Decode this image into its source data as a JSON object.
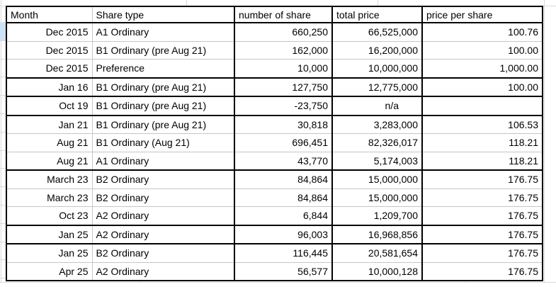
{
  "spreadsheet": {
    "columns": [
      {
        "id": "month",
        "label": "Month",
        "align": "right"
      },
      {
        "id": "share_type",
        "label": "Share type",
        "align": "left"
      },
      {
        "id": "number_of_share",
        "label": "number of share",
        "align": "right"
      },
      {
        "id": "total_price",
        "label": "total price",
        "align": "right"
      },
      {
        "id": "price_per_share",
        "label": "price per share",
        "align": "right"
      }
    ],
    "rows": [
      {
        "cells": [
          "Dec 2015",
          "A1 Ordinary",
          "660,250",
          "66,525,000",
          "100.76"
        ],
        "group_end": false
      },
      {
        "cells": [
          "Dec 2015",
          "B1 Ordinary (pre Aug 21)",
          "162,000",
          "16,200,000",
          "100.00"
        ],
        "group_end": false
      },
      {
        "cells": [
          "Dec 2015",
          "Preference",
          "10,000",
          "10,000,000",
          "1,000.00"
        ],
        "group_end": true
      },
      {
        "cells": [
          "Jan 16",
          "B1 Ordinary (pre Aug 21)",
          "127,750",
          "12,775,000",
          "100.00"
        ],
        "group_end": true
      },
      {
        "cells": [
          "Oct 19",
          "B1 Ordinary (pre Aug 21)",
          "-23,750",
          "n/a",
          ""
        ],
        "group_end": true
      },
      {
        "cells": [
          "Jan 21",
          "B1 Ordinary (pre Aug 21)",
          "30,818",
          "3,283,000",
          "106.53"
        ],
        "group_end": false
      },
      {
        "cells": [
          "Aug 21",
          "B1 Ordinary (Aug 21)",
          "696,451",
          "82,326,017",
          "118.21"
        ],
        "group_end": false
      },
      {
        "cells": [
          "Aug 21",
          "A1 Ordinary",
          "43,770",
          "5,174,003",
          "118.21"
        ],
        "group_end": true
      },
      {
        "cells": [
          "March 23",
          "B2 Ordinary",
          "84,864",
          "15,000,000",
          "176.75"
        ],
        "group_end": false
      },
      {
        "cells": [
          "March 23",
          "B2 Ordinary",
          "84,864",
          "15,000,000",
          "176.75"
        ],
        "group_end": false
      },
      {
        "cells": [
          "Oct 23",
          "A2 Ordinary",
          "6,844",
          "1,209,700",
          "176.75"
        ],
        "group_end": true
      },
      {
        "cells": [
          "Jan 25",
          "A2 Ordinary",
          "96,003",
          "16,968,856",
          "176.75"
        ],
        "group_end": true
      },
      {
        "cells": [
          "Jan 25",
          "B2 Ordinary",
          "116,445",
          "20,581,654",
          "176.75"
        ],
        "group_end": false
      },
      {
        "cells": [
          "Apr 25",
          "A2 Ordinary",
          "56,577",
          "10,000,128",
          "176.75"
        ],
        "group_end": true
      }
    ],
    "colors": {
      "grid_light": "#d9d9d9",
      "grid_inner": "#c6c6c6",
      "border_black": "#000000",
      "selection_blue": "#cfe2f3"
    }
  }
}
